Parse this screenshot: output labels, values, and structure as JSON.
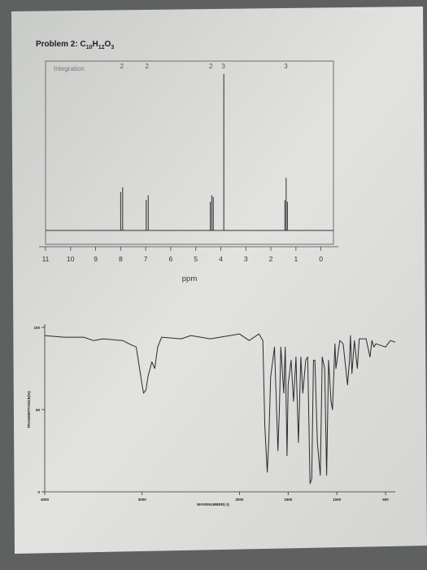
{
  "page": {
    "problem_label": "Problem 2:",
    "formula": "C10H12O3"
  },
  "chart_data": [
    {
      "type": "line",
      "name": "1H NMR spectrum",
      "xlabel": "ppm",
      "x_reversed": true,
      "xlim": [
        11,
        -0.5
      ],
      "x_ticks": [
        11,
        10,
        9,
        8,
        7,
        6,
        5,
        4,
        3,
        2,
        1,
        0
      ],
      "legend_label": "Integration",
      "integration_values": [
        {
          "ppm": 7.95,
          "label": "2"
        },
        {
          "ppm": 6.95,
          "label": "2"
        },
        {
          "ppm": 4.4,
          "label": "2"
        },
        {
          "ppm": 3.9,
          "label": "3"
        },
        {
          "ppm": 1.4,
          "label": "3"
        }
      ],
      "peaks": [
        {
          "ppm": 8.0,
          "height": 0.24
        },
        {
          "ppm": 7.92,
          "height": 0.27
        },
        {
          "ppm": 6.98,
          "height": 0.19
        },
        {
          "ppm": 6.9,
          "height": 0.22
        },
        {
          "ppm": 4.42,
          "height": 0.18
        },
        {
          "ppm": 4.36,
          "height": 0.22
        },
        {
          "ppm": 4.3,
          "height": 0.21
        },
        {
          "ppm": 3.88,
          "height": 0.98
        },
        {
          "ppm": 1.44,
          "height": 0.19
        },
        {
          "ppm": 1.39,
          "height": 0.33
        },
        {
          "ppm": 1.34,
          "height": 0.18
        }
      ]
    },
    {
      "type": "line",
      "name": "IR spectrum",
      "xlabel": "WAVENUMBER(-1)",
      "ylabel": "TRANSMITTANCE(%)",
      "xlim": [
        4000,
        400
      ],
      "ylim": [
        0,
        100
      ],
      "x_ticks": [
        {
          "value": 4000,
          "label": "4000"
        },
        {
          "value": 3000,
          "label": "3000"
        },
        {
          "value": 2000,
          "label": "2000"
        },
        {
          "value": 1500,
          "label": "1500"
        },
        {
          "value": 1000,
          "label": "1000"
        },
        {
          "value": 500,
          "label": "500"
        }
      ],
      "y_ticks": [
        {
          "value": 0,
          "label": "0"
        },
        {
          "value": 50,
          "label": "50"
        },
        {
          "value": 100,
          "label": "100"
        }
      ],
      "points": [
        [
          4000,
          95
        ],
        [
          3800,
          94
        ],
        [
          3600,
          94
        ],
        [
          3500,
          92
        ],
        [
          3400,
          93
        ],
        [
          3200,
          92
        ],
        [
          3100,
          89
        ],
        [
          3060,
          88
        ],
        [
          3000,
          65
        ],
        [
          2985,
          60
        ],
        [
          2960,
          62
        ],
        [
          2940,
          70
        ],
        [
          2900,
          79
        ],
        [
          2870,
          75
        ],
        [
          2840,
          88
        ],
        [
          2800,
          94
        ],
        [
          2600,
          93
        ],
        [
          2500,
          95
        ],
        [
          2300,
          93
        ],
        [
          2200,
          94
        ],
        [
          2000,
          96
        ],
        [
          1900,
          92
        ],
        [
          1800,
          96
        ],
        [
          1760,
          92
        ],
        [
          1740,
          40
        ],
        [
          1715,
          12
        ],
        [
          1700,
          30
        ],
        [
          1680,
          70
        ],
        [
          1640,
          88
        ],
        [
          1605,
          25
        ],
        [
          1590,
          50
        ],
        [
          1575,
          88
        ],
        [
          1545,
          60
        ],
        [
          1530,
          88
        ],
        [
          1512,
          22
        ],
        [
          1500,
          65
        ],
        [
          1470,
          80
        ],
        [
          1445,
          55
        ],
        [
          1420,
          82
        ],
        [
          1395,
          30
        ],
        [
          1370,
          82
        ],
        [
          1350,
          60
        ],
        [
          1320,
          80
        ],
        [
          1300,
          82
        ],
        [
          1275,
          5
        ],
        [
          1258,
          8
        ],
        [
          1240,
          80
        ],
        [
          1225,
          80
        ],
        [
          1200,
          30
        ],
        [
          1170,
          10
        ],
        [
          1150,
          82
        ],
        [
          1125,
          75
        ],
        [
          1105,
          10
        ],
        [
          1085,
          80
        ],
        [
          1060,
          55
        ],
        [
          1045,
          50
        ],
        [
          1020,
          90
        ],
        [
          1010,
          75
        ],
        [
          970,
          92
        ],
        [
          935,
          90
        ],
        [
          890,
          65
        ],
        [
          870,
          80
        ],
        [
          860,
          95
        ],
        [
          845,
          72
        ],
        [
          820,
          92
        ],
        [
          790,
          75
        ],
        [
          770,
          93
        ],
        [
          700,
          93
        ],
        [
          660,
          82
        ],
        [
          640,
          92
        ],
        [
          620,
          88
        ],
        [
          600,
          90
        ],
        [
          500,
          88
        ],
        [
          450,
          92
        ],
        [
          400,
          91
        ]
      ]
    }
  ]
}
